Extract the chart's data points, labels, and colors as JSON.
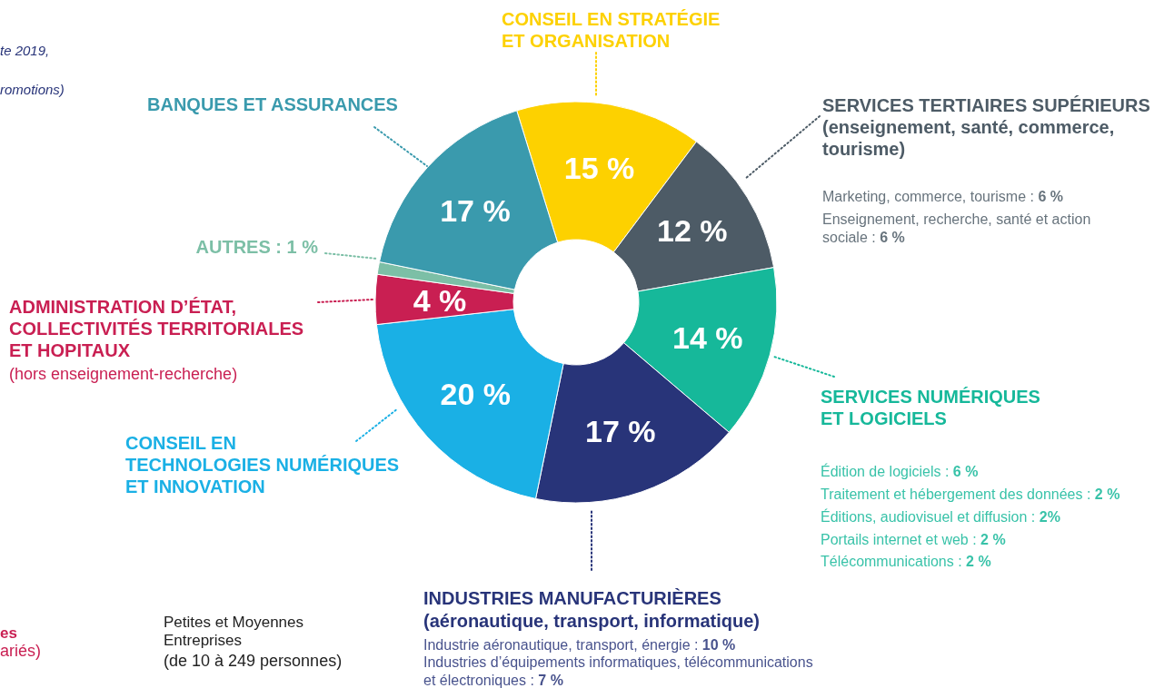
{
  "chart_data": {
    "type": "donut",
    "categories": [
      "CONSEIL EN STRATÉGIE ET ORGANISATION",
      "SERVICES TERTIAIRES SUPÉRIEURS",
      "SERVICES NUMÉRIQUES ET LOGICIELS",
      "INDUSTRIES MANUFACTURIÈRES",
      "CONSEIL EN TECHNOLOGIES NUMÉRIQUES ET INNOVATION",
      "ADMINISTRATION D’ÉTAT, COLLECTIVITÉS TERRITORIALES ET HOPITAUX",
      "AUTRES : 1 %",
      "BANQUES ET ASSURANCES"
    ],
    "values": [
      15,
      12,
      14,
      17,
      20,
      4,
      1,
      17
    ],
    "colors": [
      "#fdd100",
      "#4d5b66",
      "#16b89a",
      "#283479",
      "#1ab0e5",
      "#c91f52",
      "#7cbfa6",
      "#3a9aad"
    ],
    "value_labels": [
      "15 %",
      "12 %",
      "14 %",
      "17 %",
      "20 %",
      "4 %",
      null,
      "17 %"
    ],
    "annotations": [
      "(enseignement, santé, commerce, tourisme)",
      "Marketing, commerce, tourisme : 6 %",
      "Enseignement, recherche, santé et action sociale : 6 %",
      "Édition de logiciels : 6 %",
      "Traitement et hébergement des données : 2 %",
      "Éditions, audiovisuel et diffusion : 2%",
      "Portails internet et web : 2 %",
      "Télécommunications : 2 %",
      "(aéronautique, transport, informatique)",
      "Industrie aéronautique, transport, énergie : 10 %",
      "Industries d’équipements informatiques, télécommunications et électroniques : 7 %",
      "(hors enseignement-recherche)",
      "te 2019,",
      "romotions)",
      "es",
      "ariés)",
      "Petites et Moyennes Entreprises",
      "(de 10 à 249 personnes)"
    ]
  }
}
